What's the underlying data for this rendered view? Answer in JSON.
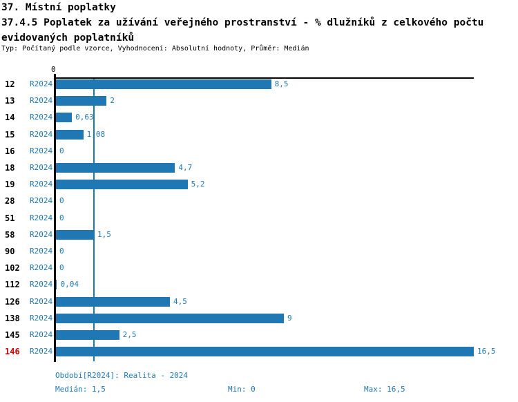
{
  "page": {
    "title": "37. Místní poplatky",
    "subtitle": "37.4.5 Poplatek za užívání veřejného prostranství - % dlužníků z celkového počtu evidovaných poplatníků",
    "meta": "Typ: Počítaný podle vzorce, Vyhodnocení: Absolutní hodnoty, Průměr: Medián"
  },
  "chart_data": {
    "type": "bar",
    "orientation": "horizontal",
    "title": "37.4.5 Poplatek za užívání veřejného prostranství - % dlužníků z celkového počtu evidovaných poplatníků",
    "series_label": "R2024",
    "categories": [
      "12",
      "13",
      "14",
      "15",
      "16",
      "18",
      "19",
      "28",
      "51",
      "58",
      "90",
      "102",
      "112",
      "126",
      "138",
      "145",
      "146"
    ],
    "values": [
      8.5,
      2,
      0.63,
      1.08,
      0,
      4.7,
      5.2,
      0,
      0,
      1.5,
      0,
      0,
      0.04,
      4.5,
      9,
      2.5,
      16.5
    ],
    "value_labels": [
      "8,5",
      "2",
      "0,63",
      "1,08",
      "0",
      "4,7",
      "5,2",
      "0",
      "0",
      "1,5",
      "0",
      "0",
      "0,04",
      "4,5",
      "9",
      "2,5",
      "16,5"
    ],
    "xlim": [
      0,
      16.5
    ],
    "axis_origin_label": "0",
    "median_line_value": 1.5,
    "highlighted_category": "146",
    "grid": false,
    "legend_position": "none",
    "colors": {
      "bar": "#1f77b4",
      "value_label": "#1f77b4",
      "series_label": "#1f77b4",
      "category_label": "#000000",
      "highlighted_category_label": "#cc0000",
      "axis": "#000000",
      "median_line": "#1f77b4"
    }
  },
  "footer": {
    "period": "Období[R2024]: Realita - 2024",
    "median": "Medián: 1,5",
    "min": "Min: 0",
    "max": "Max: 16,5"
  }
}
